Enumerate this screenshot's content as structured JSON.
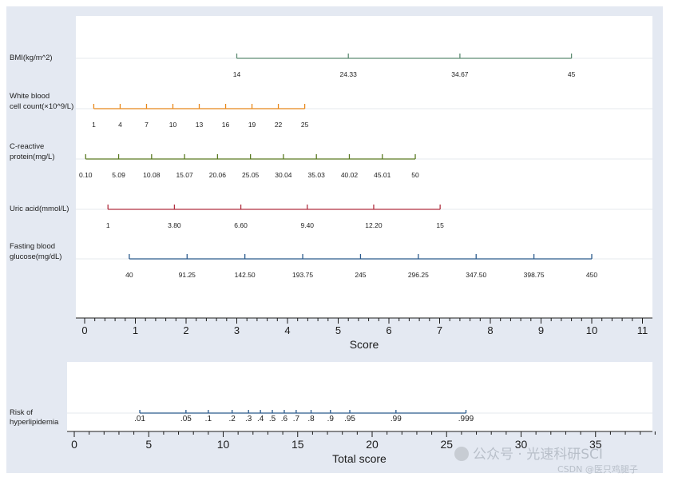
{
  "chart_data": [
    {
      "type": "nomogram",
      "axis": {
        "label": "Score",
        "range": [
          0,
          11
        ],
        "ticks": [
          "0",
          "1",
          "2",
          "3",
          "4",
          "5",
          "6",
          "7",
          "8",
          "9",
          "10",
          "11"
        ]
      },
      "grid": true,
      "variables": [
        {
          "label": [
            "BMI(kg/m^2)"
          ],
          "color": "#5e8c73",
          "points": [
            {
              "score": 3.0,
              "label": "14"
            },
            {
              "score": 5.2,
              "label": "24.33"
            },
            {
              "score": 7.4,
              "label": "34.67"
            },
            {
              "score": 9.6,
              "label": "45"
            }
          ]
        },
        {
          "label": [
            "White blood",
            "cell count(×10^9/L)"
          ],
          "color": "#e8881a",
          "points": [
            {
              "score": 0.18,
              "label": "1"
            },
            {
              "score": 0.7,
              "label": "4"
            },
            {
              "score": 1.22,
              "label": "7"
            },
            {
              "score": 1.74,
              "label": "10"
            },
            {
              "score": 2.26,
              "label": "13"
            },
            {
              "score": 2.78,
              "label": "16"
            },
            {
              "score": 3.3,
              "label": "19"
            },
            {
              "score": 3.82,
              "label": "22"
            },
            {
              "score": 4.34,
              "label": "25"
            }
          ]
        },
        {
          "label": [
            "C-reactive",
            "protein(mg/L)"
          ],
          "color": "#5a7a22",
          "points": [
            {
              "score": 0.02,
              "label": "0.10"
            },
            {
              "score": 0.67,
              "label": "5.09"
            },
            {
              "score": 1.32,
              "label": "10.08"
            },
            {
              "score": 1.97,
              "label": "15.07"
            },
            {
              "score": 2.62,
              "label": "20.06"
            },
            {
              "score": 3.27,
              "label": "25.05"
            },
            {
              "score": 3.92,
              "label": "30.04"
            },
            {
              "score": 4.57,
              "label": "35.03"
            },
            {
              "score": 5.22,
              "label": "40.02"
            },
            {
              "score": 5.87,
              "label": "45.01"
            },
            {
              "score": 6.52,
              "label": "50"
            }
          ]
        },
        {
          "label": [
            "Uric acid(mmol/L)"
          ],
          "color": "#b03040",
          "points": [
            {
              "score": 0.46,
              "label": "1"
            },
            {
              "score": 1.77,
              "label": "3.80"
            },
            {
              "score": 3.08,
              "label": "6.60"
            },
            {
              "score": 4.39,
              "label": "9.40"
            },
            {
              "score": 5.7,
              "label": "12.20"
            },
            {
              "score": 7.01,
              "label": "15"
            }
          ]
        },
        {
          "label": [
            "Fasting blood",
            "glucose(mg/dL)"
          ],
          "color": "#2b5a8c",
          "points": [
            {
              "score": 0.88,
              "label": "40"
            },
            {
              "score": 2.02,
              "label": "91.25"
            },
            {
              "score": 3.16,
              "label": "142.50"
            },
            {
              "score": 4.3,
              "label": "193.75"
            },
            {
              "score": 5.44,
              "label": "245"
            },
            {
              "score": 6.58,
              "label": "296.25"
            },
            {
              "score": 7.72,
              "label": "347.50"
            },
            {
              "score": 8.86,
              "label": "398.75"
            },
            {
              "score": 10.0,
              "label": "450"
            }
          ]
        }
      ]
    },
    {
      "type": "nomogram",
      "axis": {
        "label": "Total score",
        "range": [
          0,
          39
        ],
        "ticks": [
          "0",
          "5",
          "10",
          "15",
          "20",
          "25",
          "30",
          "35"
        ]
      },
      "grid": true,
      "variables": [
        {
          "label": [
            "Risk of",
            "hyperlipidemia"
          ],
          "color": "#2b5a8c",
          "points": [
            {
              "score": 4.4,
              "label": ".01"
            },
            {
              "score": 7.5,
              "label": ".05"
            },
            {
              "score": 9.0,
              "label": ".1"
            },
            {
              "score": 10.6,
              "label": ".2"
            },
            {
              "score": 11.7,
              "label": ".3"
            },
            {
              "score": 12.5,
              "label": ".4"
            },
            {
              "score": 13.3,
              "label": ".5"
            },
            {
              "score": 14.1,
              "label": ".6"
            },
            {
              "score": 14.9,
              "label": ".7"
            },
            {
              "score": 15.9,
              "label": ".8"
            },
            {
              "score": 17.2,
              "label": ".9"
            },
            {
              "score": 18.5,
              "label": ".95"
            },
            {
              "score": 21.6,
              "label": ".99"
            },
            {
              "score": 26.3,
              "label": ".999"
            }
          ]
        }
      ]
    }
  ],
  "watermark": {
    "main": "公众号 · 光速科研SCI",
    "sub": "CSDN @医只鸡腿子"
  }
}
